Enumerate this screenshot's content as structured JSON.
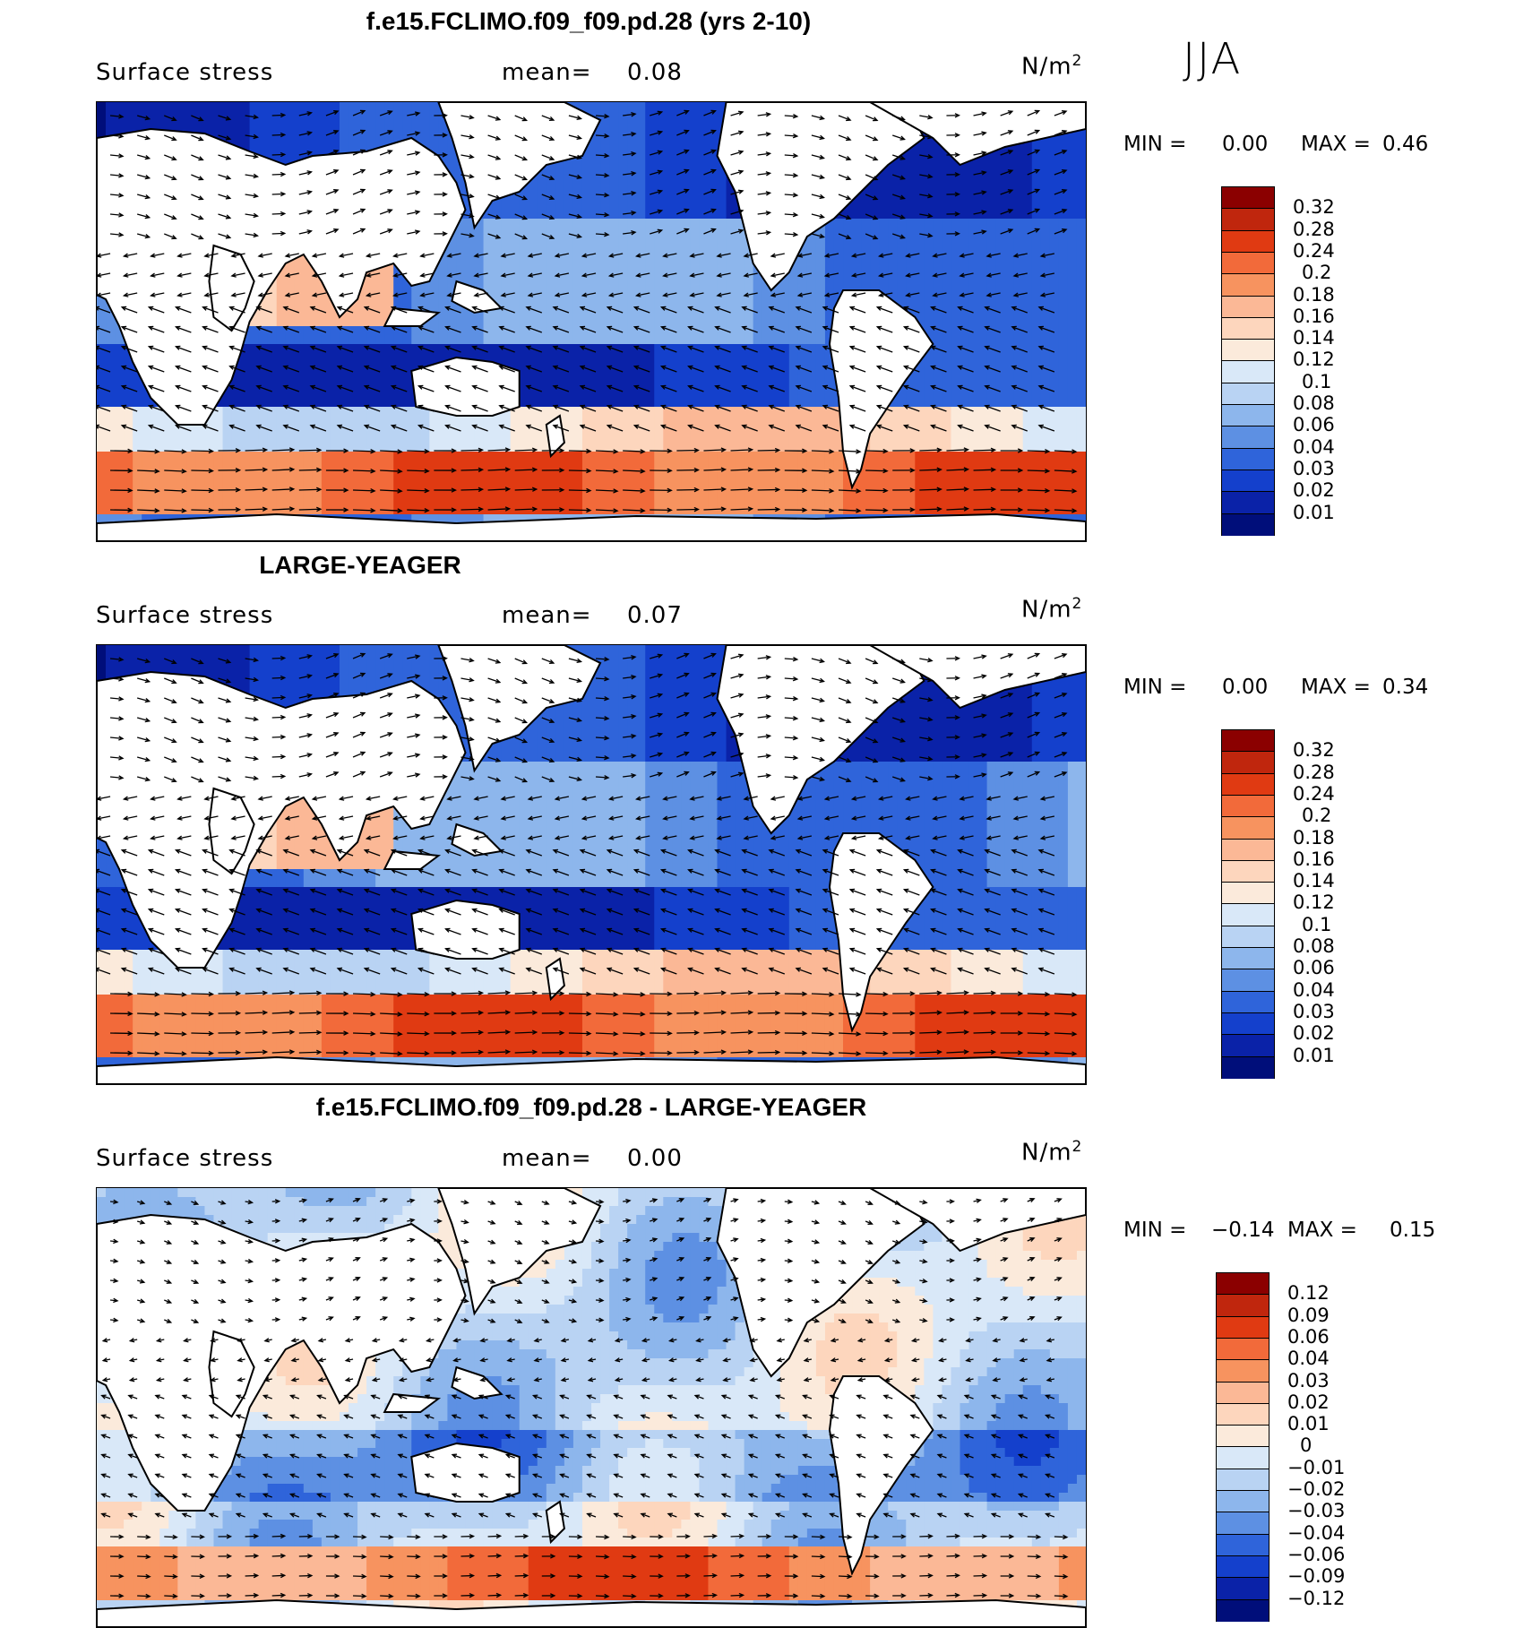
{
  "season": "JJA",
  "panels": [
    {
      "title": "f.e15.FCLIMO.f09_f09.pd.28 (yrs 2-10)",
      "variable": "Surface stress",
      "mean_label": "mean=",
      "mean_value": "0.08",
      "units_base": "N/m",
      "units_exp": "2",
      "min_label": "MIN =",
      "min_value": "0.00",
      "max_label": "MAX =",
      "max_value": "0.46",
      "colorbar": {
        "labels": [
          "0.32",
          "0.28",
          "0.24",
          "0.2",
          "0.18",
          "0.16",
          "0.14",
          "0.12",
          "0.1",
          "0.08",
          "0.06",
          "0.04",
          "0.03",
          "0.02",
          "0.01"
        ],
        "colors": [
          "#8b0000",
          "#c0260d",
          "#e03a12",
          "#f26a3a",
          "#f7935f",
          "#fbb896",
          "#fdd6bd",
          "#fbeadb",
          "#d9e8f8",
          "#b9d3f3",
          "#8db6ec",
          "#5d90e3",
          "#2f64da",
          "#1440cc",
          "#0a22a8",
          "#000e7a"
        ]
      }
    },
    {
      "title": "LARGE-YEAGER",
      "variable": "Surface stress",
      "mean_label": "mean=",
      "mean_value": "0.07",
      "units_base": "N/m",
      "units_exp": "2",
      "min_label": "MIN =",
      "min_value": "0.00",
      "max_label": "MAX =",
      "max_value": "0.34",
      "colorbar": {
        "labels": [
          "0.32",
          "0.28",
          "0.24",
          "0.2",
          "0.18",
          "0.16",
          "0.14",
          "0.12",
          "0.1",
          "0.08",
          "0.06",
          "0.04",
          "0.03",
          "0.02",
          "0.01"
        ],
        "colors": [
          "#8b0000",
          "#c0260d",
          "#e03a12",
          "#f26a3a",
          "#f7935f",
          "#fbb896",
          "#fdd6bd",
          "#fbeadb",
          "#d9e8f8",
          "#b9d3f3",
          "#8db6ec",
          "#5d90e3",
          "#2f64da",
          "#1440cc",
          "#0a22a8",
          "#000e7a"
        ]
      }
    },
    {
      "title": "f.e15.FCLIMO.f09_f09.pd.28 - LARGE-YEAGER",
      "variable": "Surface stress",
      "mean_label": "mean=",
      "mean_value": "0.00",
      "units_base": "N/m",
      "units_exp": "2",
      "min_label": "MIN =",
      "min_value": "−0.14",
      "max_label": "MAX =",
      "max_value": "0.15",
      "colorbar": {
        "labels": [
          "0.12",
          "0.09",
          "0.06",
          "0.04",
          "0.03",
          "0.02",
          "0.01",
          "0",
          "−0.01",
          "−0.02",
          "−0.03",
          "−0.04",
          "−0.06",
          "−0.09",
          "−0.12"
        ],
        "colors": [
          "#8b0000",
          "#c0260d",
          "#e03a12",
          "#f26a3a",
          "#f7935f",
          "#fbb896",
          "#fdd6bd",
          "#fbeadb",
          "#d9e8f8",
          "#b9d3f3",
          "#8db6ec",
          "#5d90e3",
          "#2f64da",
          "#1440cc",
          "#0a22a8",
          "#000e7a"
        ]
      }
    }
  ]
}
